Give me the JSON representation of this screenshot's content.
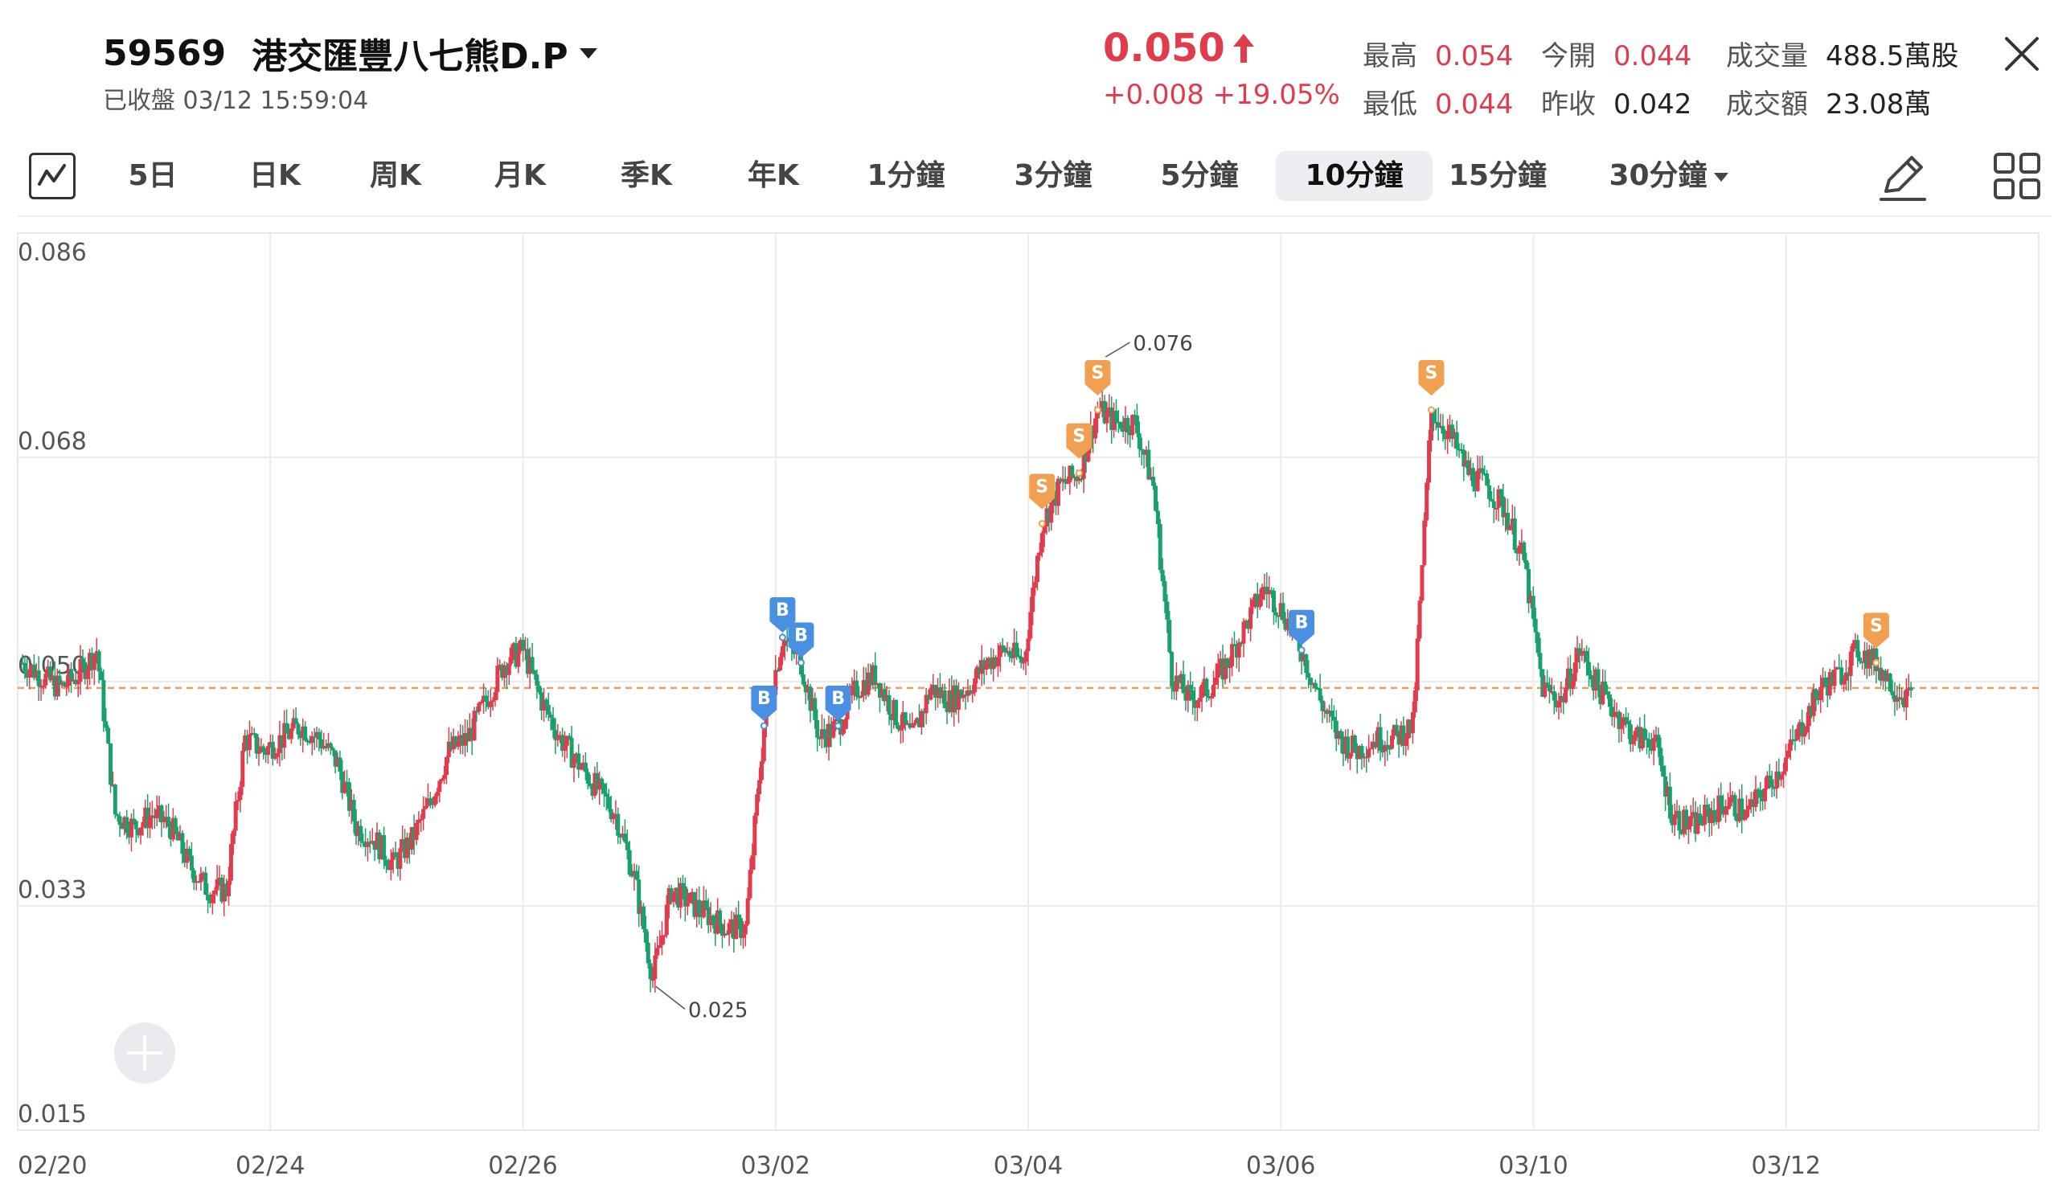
{
  "header": {
    "code": "59569",
    "name": "港交匯豐八七熊D.P",
    "status": "已收盤 03/12 15:59:04",
    "price": "0.050",
    "change": "+0.008 +19.05%",
    "stats": [
      {
        "label": "最高",
        "value": "0.054",
        "color": "red"
      },
      {
        "label": "今開",
        "value": "0.044",
        "color": "red"
      },
      {
        "label": "成交量",
        "value": "488.5萬股",
        "color": "dark"
      },
      {
        "label": "最低",
        "value": "0.044",
        "color": "red"
      },
      {
        "label": "昨收",
        "value": "0.042",
        "color": "dark"
      },
      {
        "label": "成交額",
        "value": "23.08萬",
        "color": "dark"
      }
    ]
  },
  "toolbar": {
    "tabs": [
      "5日",
      "日K",
      "周K",
      "月K",
      "季K",
      "年K",
      "1分鐘",
      "3分鐘",
      "5分鐘",
      "10分鐘",
      "15分鐘",
      "30分鐘"
    ],
    "active_tab": "10分鐘",
    "dropdown_tab": "30分鐘",
    "icons": [
      "line-chart-icon",
      "pencil-icon",
      "grid-layout-icon",
      "close-icon",
      "add-icon"
    ]
  },
  "colors": {
    "up": "#e03c4e",
    "down": "#1aa06d",
    "reference_line": "#e8a060",
    "buy_marker": "#4a90e2",
    "sell_marker": "#f0a050"
  },
  "chart_data": {
    "type": "candlestick",
    "y_ticks": [
      "0.086",
      "0.068",
      "0.050",
      "0.033",
      "0.015"
    ],
    "ylim": [
      0.015,
      0.086
    ],
    "x_ticks": [
      "02/20",
      "02/24",
      "02/26",
      "03/02",
      "03/04",
      "03/06",
      "03/10",
      "03/12"
    ],
    "reference_value": 0.05,
    "high_label": "0.076",
    "low_label": "0.025",
    "price_path": [
      0.052,
      0.051,
      0.05,
      0.051,
      0.053,
      0.04,
      0.039,
      0.04,
      0.039,
      0.036,
      0.034,
      0.034,
      0.046,
      0.045,
      0.046,
      0.047,
      0.046,
      0.044,
      0.039,
      0.038,
      0.036,
      0.038,
      0.041,
      0.045,
      0.046,
      0.049,
      0.052,
      0.053,
      0.049,
      0.046,
      0.044,
      0.042,
      0.04,
      0.035,
      0.027,
      0.034,
      0.033,
      0.032,
      0.031,
      0.031,
      0.047,
      0.054,
      0.052,
      0.046,
      0.047,
      0.05,
      0.051,
      0.048,
      0.046,
      0.05,
      0.049,
      0.05,
      0.052,
      0.053,
      0.052,
      0.063,
      0.066,
      0.067,
      0.072,
      0.071,
      0.071,
      0.066,
      0.051,
      0.049,
      0.05,
      0.052,
      0.055,
      0.058,
      0.056,
      0.053,
      0.049,
      0.046,
      0.045,
      0.046,
      0.046,
      0.047,
      0.072,
      0.07,
      0.067,
      0.066,
      0.064,
      0.06,
      0.05,
      0.049,
      0.053,
      0.05,
      0.048,
      0.046,
      0.046,
      0.04,
      0.039,
      0.04,
      0.041,
      0.04,
      0.042,
      0.044,
      0.047,
      0.05,
      0.051,
      0.053,
      0.052,
      0.05,
      0.049
    ],
    "trade_markers": [
      {
        "type": "B",
        "i": 40
      },
      {
        "type": "B",
        "i": 41
      },
      {
        "type": "B",
        "i": 42
      },
      {
        "type": "B",
        "i": 44
      },
      {
        "type": "S",
        "i": 55
      },
      {
        "type": "S",
        "i": 57
      },
      {
        "type": "S",
        "i": 58
      },
      {
        "type": "B",
        "i": 69
      },
      {
        "type": "S",
        "i": 76
      },
      {
        "type": "S",
        "i": 100
      }
    ]
  }
}
